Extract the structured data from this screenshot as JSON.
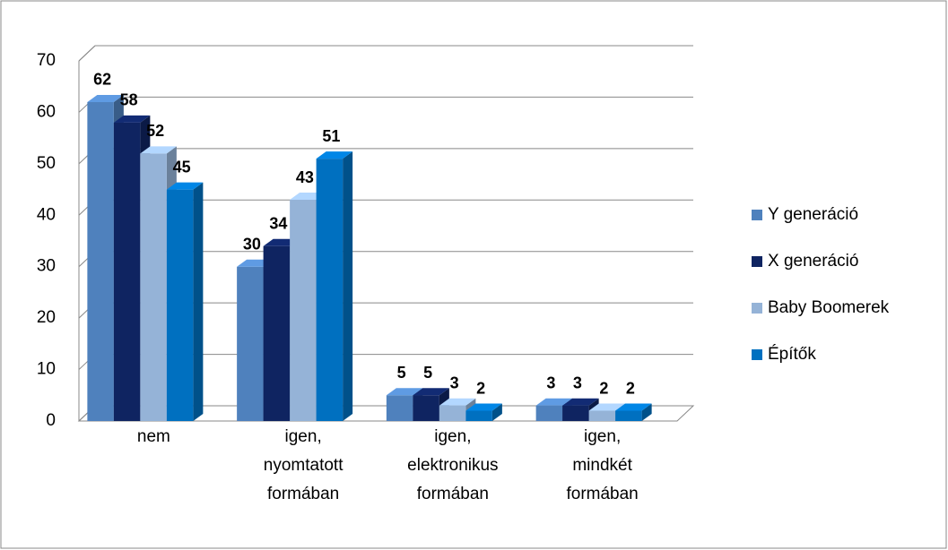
{
  "chart_data": {
    "type": "bar3d",
    "categories": [
      "nem",
      "igen, nyomtatott formában",
      "igen, elektronikus formában",
      "igen, mindkét formában"
    ],
    "series": [
      {
        "name": "Y generáció",
        "color": "#4f81bd",
        "values": [
          62,
          30,
          5,
          3
        ]
      },
      {
        "name": "X generáció",
        "color": "#0f2461",
        "values": [
          58,
          34,
          5,
          3
        ]
      },
      {
        "name": "Baby Boomerek",
        "color": "#95b3d7",
        "values": [
          52,
          43,
          3,
          2
        ]
      },
      {
        "name": "Építők",
        "color": "#0070c0",
        "values": [
          45,
          51,
          2,
          2
        ]
      }
    ],
    "ylim": [
      0,
      70
    ],
    "yticks": [
      0,
      10,
      20,
      30,
      40,
      50,
      60,
      70
    ],
    "grid": true,
    "legend": "right"
  }
}
